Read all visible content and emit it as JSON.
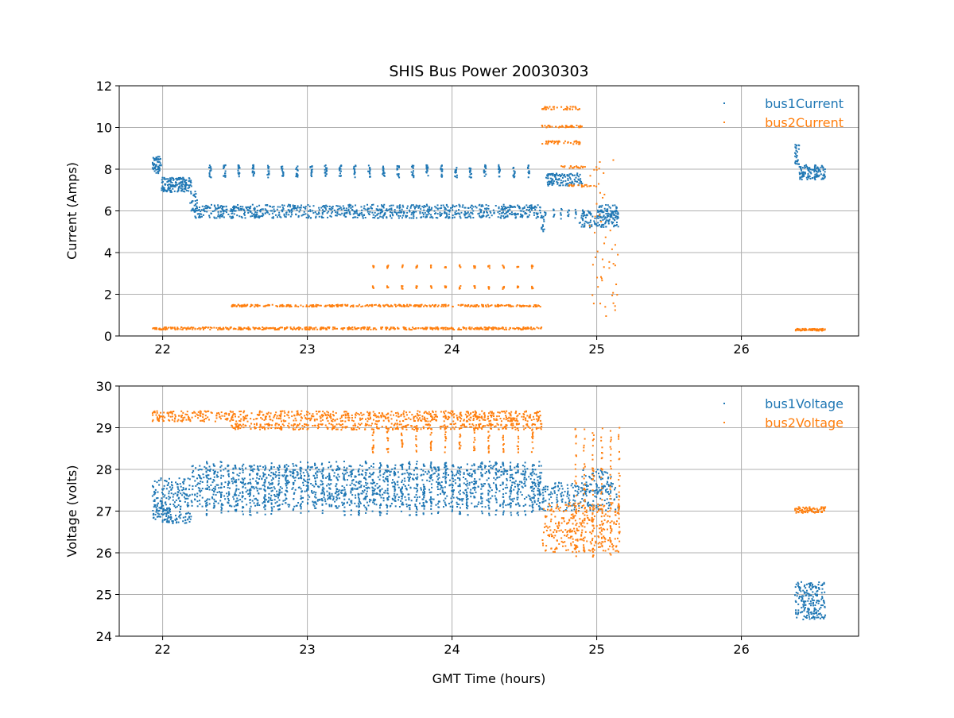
{
  "chart_data": [
    {
      "type": "scatter",
      "title": "SHIS Bus Power 20030303",
      "xlabel": "",
      "ylabel": "Current (Amps)",
      "xlim": [
        21.7,
        26.81
      ],
      "ylim": [
        0,
        12
      ],
      "xticks": [
        22,
        23,
        24,
        25,
        26
      ],
      "yticks": [
        0,
        2,
        4,
        6,
        8,
        10,
        12
      ],
      "grid": true,
      "legend_position": "top-right",
      "series": [
        {
          "name": "bus1Current",
          "color": "#1f77b4",
          "bands": [
            {
              "x": [
                21.93,
                21.99
              ],
              "y": [
                7.8,
                8.6
              ],
              "n": 60
            },
            {
              "x": [
                21.99,
                22.2
              ],
              "y": [
                6.9,
                7.6
              ],
              "n": 160
            },
            {
              "x": [
                22.19,
                22.24
              ],
              "y": [
                6.0,
                7.0
              ],
              "n": 30
            },
            {
              "x": [
                22.22,
                24.62
              ],
              "y": [
                5.65,
                6.3
              ],
              "n": 900
            },
            {
              "x": [
                22.32,
                24.6
              ],
              "y": [
                7.6,
                8.2
              ],
              "n": 15,
              "step": 0.1,
              "width": 0.015
            },
            {
              "x": [
                24.61,
                24.65
              ],
              "y": [
                5.0,
                6.0
              ],
              "n": 20
            },
            {
              "x": [
                24.65,
                24.9
              ],
              "y": [
                7.2,
                7.8
              ],
              "n": 120
            },
            {
              "x": [
                24.7,
                24.9
              ],
              "y": [
                5.6,
                6.1
              ],
              "n": 6,
              "step": 0.05,
              "width": 0.01
            },
            {
              "x": [
                24.88,
                25.15
              ],
              "y": [
                5.2,
                6.0
              ],
              "n": 120
            },
            {
              "x": [
                25.0,
                25.15
              ],
              "y": [
                5.5,
                6.3
              ],
              "n": 60
            },
            {
              "x": [
                26.37,
                26.4
              ],
              "y": [
                8.2,
                9.2
              ],
              "n": 30
            },
            {
              "x": [
                26.4,
                26.58
              ],
              "y": [
                7.5,
                8.2
              ],
              "n": 120
            }
          ]
        },
        {
          "name": "bus2Current",
          "color": "#ff7f0e",
          "bands": [
            {
              "x": [
                21.93,
                24.62
              ],
              "y": [
                0.3,
                0.42
              ],
              "n": 500
            },
            {
              "x": [
                22.47,
                24.62
              ],
              "y": [
                1.4,
                1.5
              ],
              "n": 350
            },
            {
              "x": [
                23.45,
                24.6
              ],
              "y": [
                2.25,
                2.4
              ],
              "n": 5,
              "step": 0.1,
              "width": 0.01
            },
            {
              "x": [
                23.45,
                24.6
              ],
              "y": [
                3.25,
                3.4
              ],
              "n": 5,
              "step": 0.1,
              "width": 0.01
            },
            {
              "x": [
                24.62,
                24.9
              ],
              "y": [
                10.85,
                11.0
              ],
              "n": 40
            },
            {
              "x": [
                24.62,
                24.9
              ],
              "y": [
                10.0,
                10.1
              ],
              "n": 40
            },
            {
              "x": [
                24.62,
                24.9
              ],
              "y": [
                9.2,
                9.35
              ],
              "n": 40
            },
            {
              "x": [
                24.75,
                24.95
              ],
              "y": [
                8.05,
                8.15
              ],
              "n": 20
            },
            {
              "x": [
                24.8,
                25.0
              ],
              "y": [
                7.15,
                7.25
              ],
              "n": 20
            },
            {
              "x": [
                24.95,
                25.15
              ],
              "y": [
                0.9,
                8.5
              ],
              "n": 50
            },
            {
              "x": [
                26.37,
                26.58
              ],
              "y": [
                0.25,
                0.35
              ],
              "n": 80
            }
          ]
        },
        {
          "name": "legend",
          "entries": [
            "bus1Current",
            "bus2Current"
          ]
        }
      ]
    },
    {
      "type": "scatter",
      "title": "",
      "xlabel": "GMT Time (hours)",
      "ylabel": "Voltage (volts)",
      "xlim": [
        21.7,
        26.81
      ],
      "ylim": [
        24,
        30
      ],
      "xticks": [
        22,
        23,
        24,
        25,
        26
      ],
      "yticks": [
        24,
        25,
        26,
        27,
        28,
        29,
        30
      ],
      "grid": true,
      "legend_position": "top-right",
      "series": [
        {
          "name": "bus1Voltage",
          "color": "#1f77b4",
          "bands": [
            {
              "x": [
                21.93,
                22.2
              ],
              "y": [
                26.7,
                27.8
              ],
              "n": 250
            },
            {
              "x": [
                22.2,
                24.62
              ],
              "y": [
                27.1,
                28.1
              ],
              "n": 1100
            },
            {
              "x": [
                22.3,
                24.6
              ],
              "y": [
                26.9,
                28.2
              ],
              "n": 20,
              "step": 0.05,
              "width": 0.01
            },
            {
              "x": [
                24.62,
                25.15
              ],
              "y": [
                27.0,
                27.7
              ],
              "n": 200
            },
            {
              "x": [
                24.9,
                25.1
              ],
              "y": [
                27.4,
                28.0
              ],
              "n": 60
            },
            {
              "x": [
                26.37,
                26.58
              ],
              "y": [
                24.4,
                25.3
              ],
              "n": 200
            }
          ]
        },
        {
          "name": "bus2Voltage",
          "color": "#ff7f0e",
          "bands": [
            {
              "x": [
                21.93,
                24.62
              ],
              "y": [
                29.15,
                29.4
              ],
              "n": 700
            },
            {
              "x": [
                22.47,
                24.62
              ],
              "y": [
                28.95,
                29.1
              ],
              "n": 350
            },
            {
              "x": [
                23.45,
                24.6
              ],
              "y": [
                28.4,
                29.0
              ],
              "n": 12,
              "step": 0.1,
              "width": 0.01
            },
            {
              "x": [
                24.62,
                25.15
              ],
              "y": [
                26.0,
                27.2
              ],
              "n": 300
            },
            {
              "x": [
                24.85,
                25.15
              ],
              "y": [
                25.9,
                29.0
              ],
              "n": 30,
              "step": 0.06,
              "width": 0.01
            },
            {
              "x": [
                26.37,
                26.58
              ],
              "y": [
                26.95,
                27.1
              ],
              "n": 80
            }
          ]
        }
      ]
    }
  ]
}
